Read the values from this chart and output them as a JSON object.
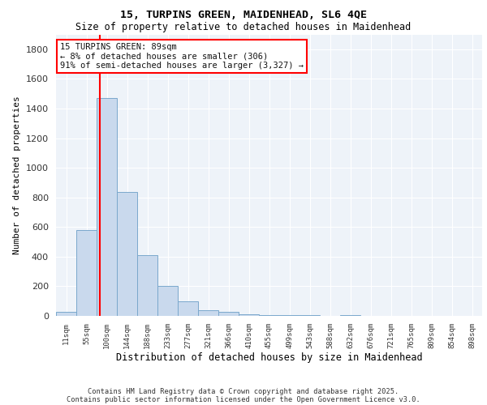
{
  "title1": "15, TURPINS GREEN, MAIDENHEAD, SL6 4QE",
  "title2": "Size of property relative to detached houses in Maidenhead",
  "xlabel": "Distribution of detached houses by size in Maidenhead",
  "ylabel": "Number of detached properties",
  "bar_labels": [
    "11sqm",
    "55sqm",
    "100sqm",
    "144sqm",
    "188sqm",
    "233sqm",
    "277sqm",
    "321sqm",
    "366sqm",
    "410sqm",
    "455sqm",
    "499sqm",
    "543sqm",
    "588sqm",
    "632sqm",
    "676sqm",
    "721sqm",
    "765sqm",
    "809sqm",
    "854sqm",
    "898sqm"
  ],
  "bar_values": [
    30,
    580,
    1470,
    835,
    410,
    200,
    100,
    40,
    30,
    10,
    5,
    5,
    5,
    0,
    5,
    0,
    0,
    0,
    0,
    0,
    0
  ],
  "bar_color": "#c9d9ed",
  "bar_edge_color": "#7aa8cc",
  "ylim": [
    0,
    1900
  ],
  "yticks": [
    0,
    200,
    400,
    600,
    800,
    1000,
    1200,
    1400,
    1600,
    1800
  ],
  "vline_x": 1.65,
  "annotation_line1": "15 TURPINS GREEN: 89sqm",
  "annotation_line2": "← 8% of detached houses are smaller (306)",
  "annotation_line3": "91% of semi-detached houses are larger (3,327) →",
  "bg_color": "#eef3f9",
  "grid_color": "#ffffff",
  "footer1": "Contains HM Land Registry data © Crown copyright and database right 2025.",
  "footer2": "Contains public sector information licensed under the Open Government Licence v3.0."
}
